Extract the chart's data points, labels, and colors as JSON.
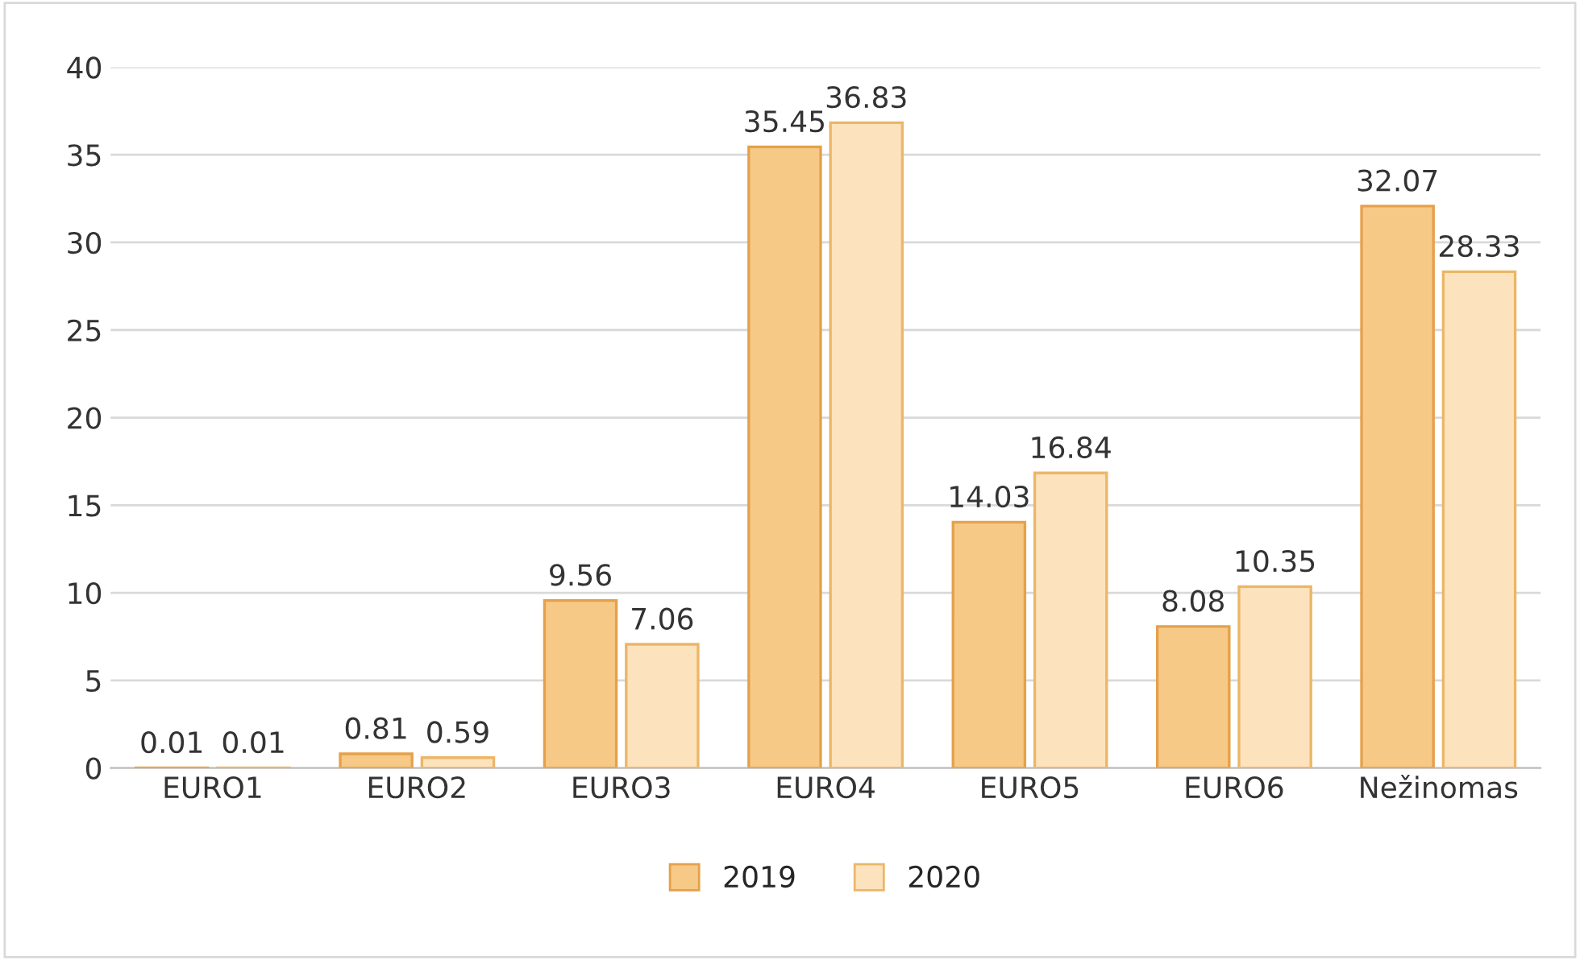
{
  "chart_data": {
    "type": "bar",
    "categories": [
      "EURO1",
      "EURO2",
      "EURO3",
      "EURO4",
      "EURO5",
      "EURO6",
      "Nežinomas"
    ],
    "series": [
      {
        "name": "2019",
        "color": "#f6c987",
        "values": [
          0.01,
          0.81,
          9.56,
          35.45,
          14.03,
          8.08,
          32.07
        ]
      },
      {
        "name": "2020",
        "color": "#fde3bd",
        "values": [
          0.01,
          0.59,
          7.06,
          36.83,
          16.84,
          10.35,
          28.33
        ]
      }
    ],
    "ylim": [
      0,
      40
    ],
    "yticks": [
      0,
      5,
      10,
      15,
      20,
      25,
      30,
      35,
      40
    ],
    "grid": "y",
    "legend": "bottom",
    "data_labels": true
  }
}
